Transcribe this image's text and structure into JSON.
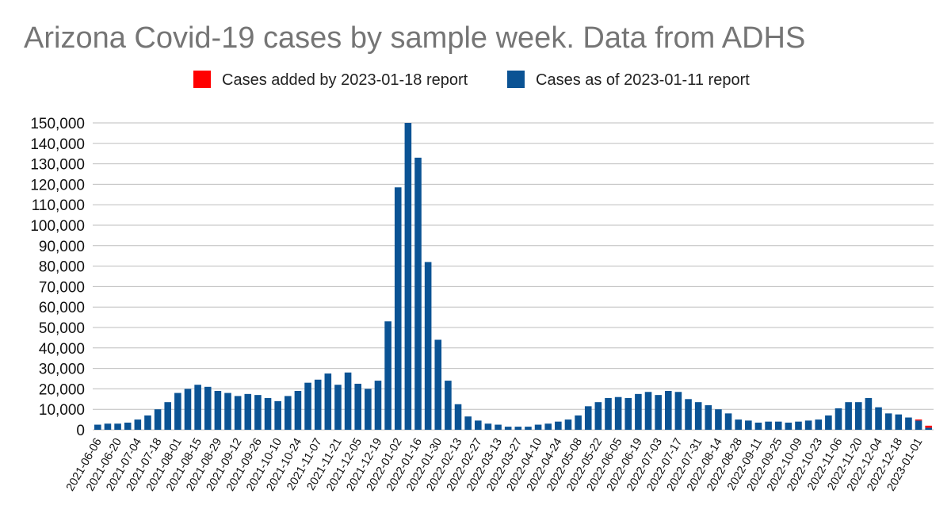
{
  "chart_data": {
    "type": "bar",
    "stacked": true,
    "title": "Arizona Covid-19 cases by sample week. Data from ADHS",
    "xlabel": "",
    "ylabel": "",
    "ylim": [
      0,
      150000
    ],
    "yticks": [
      0,
      10000,
      20000,
      30000,
      40000,
      50000,
      60000,
      70000,
      80000,
      90000,
      100000,
      110000,
      120000,
      130000,
      140000,
      150000
    ],
    "ytick_labels": [
      "0",
      "10,000",
      "20,000",
      "30,000",
      "40,000",
      "50,000",
      "60,000",
      "70,000",
      "80,000",
      "90,000",
      "100,000",
      "110,000",
      "120,000",
      "130,000",
      "140,000",
      "150,000"
    ],
    "grid": true,
    "legend_position": "top-center",
    "categories": [
      "2021-06-06",
      "2021-06-13",
      "2021-06-20",
      "2021-06-27",
      "2021-07-04",
      "2021-07-11",
      "2021-07-18",
      "2021-07-25",
      "2021-08-01",
      "2021-08-08",
      "2021-08-15",
      "2021-08-22",
      "2021-08-29",
      "2021-09-05",
      "2021-09-12",
      "2021-09-19",
      "2021-09-26",
      "2021-10-03",
      "2021-10-10",
      "2021-10-17",
      "2021-10-24",
      "2021-10-31",
      "2021-11-07",
      "2021-11-14",
      "2021-11-21",
      "2021-11-28",
      "2021-12-05",
      "2021-12-12",
      "2021-12-19",
      "2021-12-26",
      "2022-01-02",
      "2022-01-09",
      "2022-01-16",
      "2022-01-23",
      "2022-01-30",
      "2022-02-06",
      "2022-02-13",
      "2022-02-20",
      "2022-02-27",
      "2022-03-06",
      "2022-03-13",
      "2022-03-20",
      "2022-03-27",
      "2022-04-03",
      "2022-04-10",
      "2022-04-17",
      "2022-04-24",
      "2022-05-01",
      "2022-05-08",
      "2022-05-15",
      "2022-05-22",
      "2022-05-29",
      "2022-06-05",
      "2022-06-12",
      "2022-06-19",
      "2022-06-26",
      "2022-07-03",
      "2022-07-10",
      "2022-07-17",
      "2022-07-24",
      "2022-07-31",
      "2022-08-07",
      "2022-08-14",
      "2022-08-21",
      "2022-08-28",
      "2022-09-04",
      "2022-09-11",
      "2022-09-18",
      "2022-09-25",
      "2022-10-02",
      "2022-10-09",
      "2022-10-16",
      "2022-10-23",
      "2022-10-30",
      "2022-11-06",
      "2022-11-13",
      "2022-11-20",
      "2022-11-27",
      "2022-12-04",
      "2022-12-11",
      "2022-12-18",
      "2022-12-25",
      "2023-01-01",
      "2023-01-08"
    ],
    "tick_labels": [
      "2021-06-06",
      "2021-06-20",
      "2021-07-04",
      "2021-07-18",
      "2021-08-01",
      "2021-08-15",
      "2021-08-29",
      "2021-09-12",
      "2021-09-26",
      "2021-10-10",
      "2021-10-24",
      "2021-11-07",
      "2021-11-21",
      "2021-12-05",
      "2021-12-19",
      "2022-01-02",
      "2022-01-16",
      "2022-01-30",
      "2022-02-13",
      "2022-02-27",
      "2022-03-13",
      "2022-03-27",
      "2022-04-10",
      "2022-04-24",
      "2022-05-08",
      "2022-05-22",
      "2022-06-05",
      "2022-06-19",
      "2022-07-03",
      "2022-07-17",
      "2022-07-31",
      "2022-08-14",
      "2022-08-28",
      "2022-09-11",
      "2022-09-25",
      "2022-10-09",
      "2022-10-23",
      "2022-11-06",
      "2022-11-20",
      "2022-12-04",
      "2022-12-18",
      "2023-01-01"
    ],
    "series": [
      {
        "name": "Cases as of 2023-01-11 report",
        "color": "#0b5394",
        "values": [
          2500,
          3000,
          3000,
          3500,
          5000,
          7000,
          10000,
          13500,
          18000,
          20000,
          22000,
          21000,
          19000,
          18000,
          16500,
          17500,
          17000,
          15500,
          14000,
          16500,
          19000,
          23000,
          24500,
          27500,
          22000,
          28000,
          22500,
          20000,
          24000,
          53000,
          118500,
          150000,
          133000,
          82000,
          44000,
          24000,
          12500,
          6500,
          4500,
          3000,
          2500,
          1500,
          1500,
          1500,
          2500,
          3000,
          4000,
          5000,
          7000,
          11500,
          13500,
          15500,
          16000,
          15500,
          17500,
          18500,
          17000,
          19000,
          18500,
          15000,
          13500,
          12000,
          10000,
          8000,
          5000,
          4500,
          3500,
          4000,
          4000,
          3500,
          4000,
          4500,
          5000,
          7000,
          10500,
          13500,
          13500,
          15500,
          11000,
          8000,
          7500,
          6000,
          4500,
          1000
        ]
      },
      {
        "name": "Cases added by 2023-01-18 report",
        "color": "#ff0000",
        "values": [
          0,
          0,
          0,
          0,
          0,
          0,
          0,
          0,
          0,
          0,
          0,
          0,
          0,
          0,
          0,
          0,
          0,
          0,
          0,
          0,
          0,
          0,
          0,
          0,
          0,
          0,
          0,
          0,
          0,
          0,
          0,
          0,
          0,
          0,
          0,
          0,
          0,
          0,
          0,
          0,
          0,
          0,
          0,
          0,
          0,
          0,
          0,
          0,
          0,
          0,
          0,
          0,
          0,
          0,
          0,
          0,
          0,
          0,
          0,
          0,
          0,
          0,
          0,
          0,
          0,
          0,
          0,
          0,
          0,
          0,
          0,
          0,
          0,
          0,
          0,
          0,
          0,
          0,
          0,
          0,
          0,
          0,
          500,
          1000
        ]
      }
    ],
    "legend": [
      {
        "label": "Cases added by 2023-01-18 report",
        "color": "#ff0000"
      },
      {
        "label": "Cases as of 2023-01-11 report",
        "color": "#0b5394"
      }
    ]
  }
}
